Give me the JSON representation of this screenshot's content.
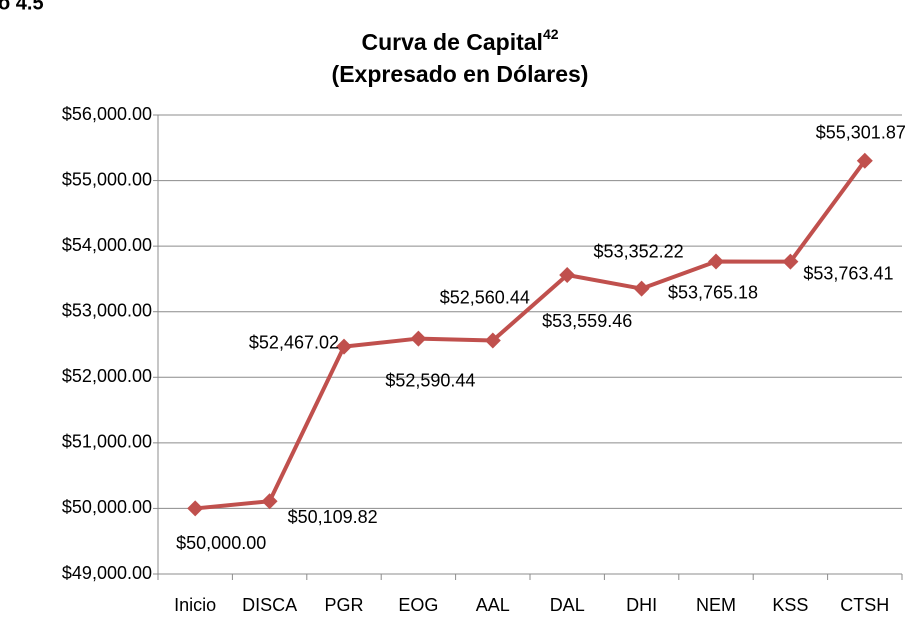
{
  "figure_label": "o 4.5",
  "chart_data": {
    "type": "line",
    "title": "Curva de Capital",
    "title_superscript": "42",
    "subtitle": "(Expresado en Dólares)",
    "categories": [
      "Inicio",
      "DISCA",
      "PGR",
      "EOG",
      "AAL",
      "DAL",
      "DHI",
      "NEM",
      "KSS",
      "CTSH"
    ],
    "category_colors": [
      "#000000",
      "#000000",
      "#000000",
      "#000000",
      "#ff0000",
      "#000000",
      "#ff0000",
      "#000000",
      "#ff0000",
      "#000000"
    ],
    "values": [
      50000,
      50109.82,
      52467.02,
      52590.44,
      52560.44,
      53559.46,
      53352.22,
      53765.18,
      53763.41,
      55301.87
    ],
    "value_labels": [
      "$50,000.00",
      "$50,109.82",
      "$52,467.02",
      "$52,590.44",
      "$52,560.44",
      "$53,559.46",
      "$53,352.22",
      "$53,765.18",
      "$53,763.41",
      "$55,301.87"
    ],
    "value_label_colors": [
      "#4f6d8f",
      "#000000",
      "#000000",
      "#000000",
      "#ff0000",
      "#000000",
      "#ff0000",
      "#000000",
      "#ff0000",
      "#00a651"
    ],
    "color": "#c0504d",
    "ylim": [
      49000,
      56000
    ],
    "yticks": [
      {
        "value": 49000,
        "label": "$49,000.00"
      },
      {
        "value": 50000,
        "label": "$50,000.00"
      },
      {
        "value": 51000,
        "label": "$51,000.00"
      },
      {
        "value": 52000,
        "label": "$52,000.00"
      },
      {
        "value": 53000,
        "label": "$53,000.00"
      },
      {
        "value": 54000,
        "label": "$54,000.00"
      },
      {
        "value": 55000,
        "label": "$55,000.00"
      },
      {
        "value": 56000,
        "label": "$56,000.00"
      }
    ],
    "grid": true
  }
}
